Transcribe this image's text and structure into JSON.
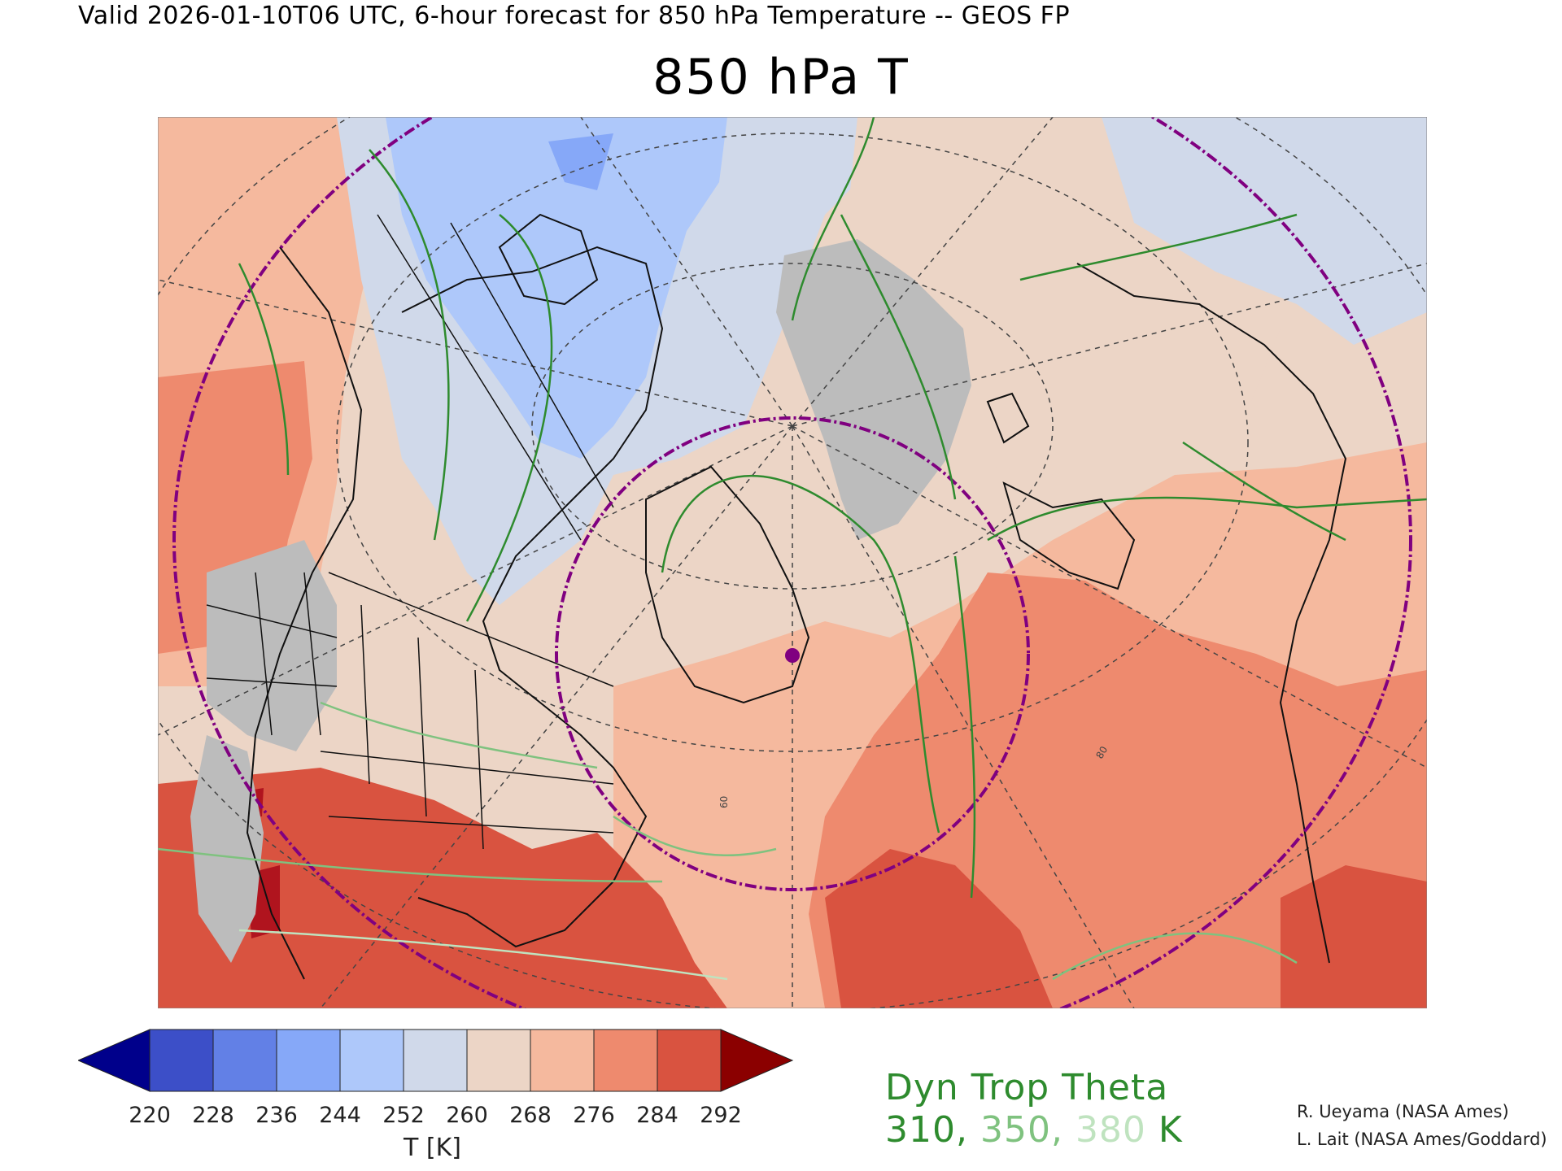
{
  "header": "Valid 2026-01-10T06 UTC, 6-hour forecast for 850 hPa Temperature -- GEOS FP",
  "title": "850 hPa T",
  "colorbar": {
    "labels": [
      "220",
      "228",
      "236",
      "244",
      "252",
      "260",
      "268",
      "276",
      "284",
      "292"
    ],
    "units": "T [K]",
    "colors": [
      "#00008b",
      "#3c4fc8",
      "#6280e6",
      "#86a8f8",
      "#aec8fa",
      "#d0d9ea",
      "#ecd5c6",
      "#f5b99e",
      "#ee8a6e",
      "#d95340",
      "#8b0000"
    ]
  },
  "map": {
    "tick_labels": [
      "80",
      "60"
    ],
    "colors": {
      "cold_blue": "#aec8fa",
      "light_blue": "#d0d9ea",
      "beige": "#ecd5c6",
      "salmon": "#f5b99e",
      "orange": "#ee8a6e",
      "red": "#d95340",
      "dark_red": "#b0141e",
      "grey_terrain": "#bcbcbc",
      "purple_circle": "#800080",
      "trop_310": "#2e8b2e",
      "trop_350": "#7fc27f",
      "trop_380": "#bfe3bf"
    }
  },
  "legend": {
    "title": "Dyn Trop Theta",
    "levels": [
      "310, ",
      "350, ",
      "380"
    ],
    "unit": " K"
  },
  "credits": [
    "R. Ueyama (NASA Ames)",
    "L. Lait (NASA Ames/Goddard)"
  ]
}
